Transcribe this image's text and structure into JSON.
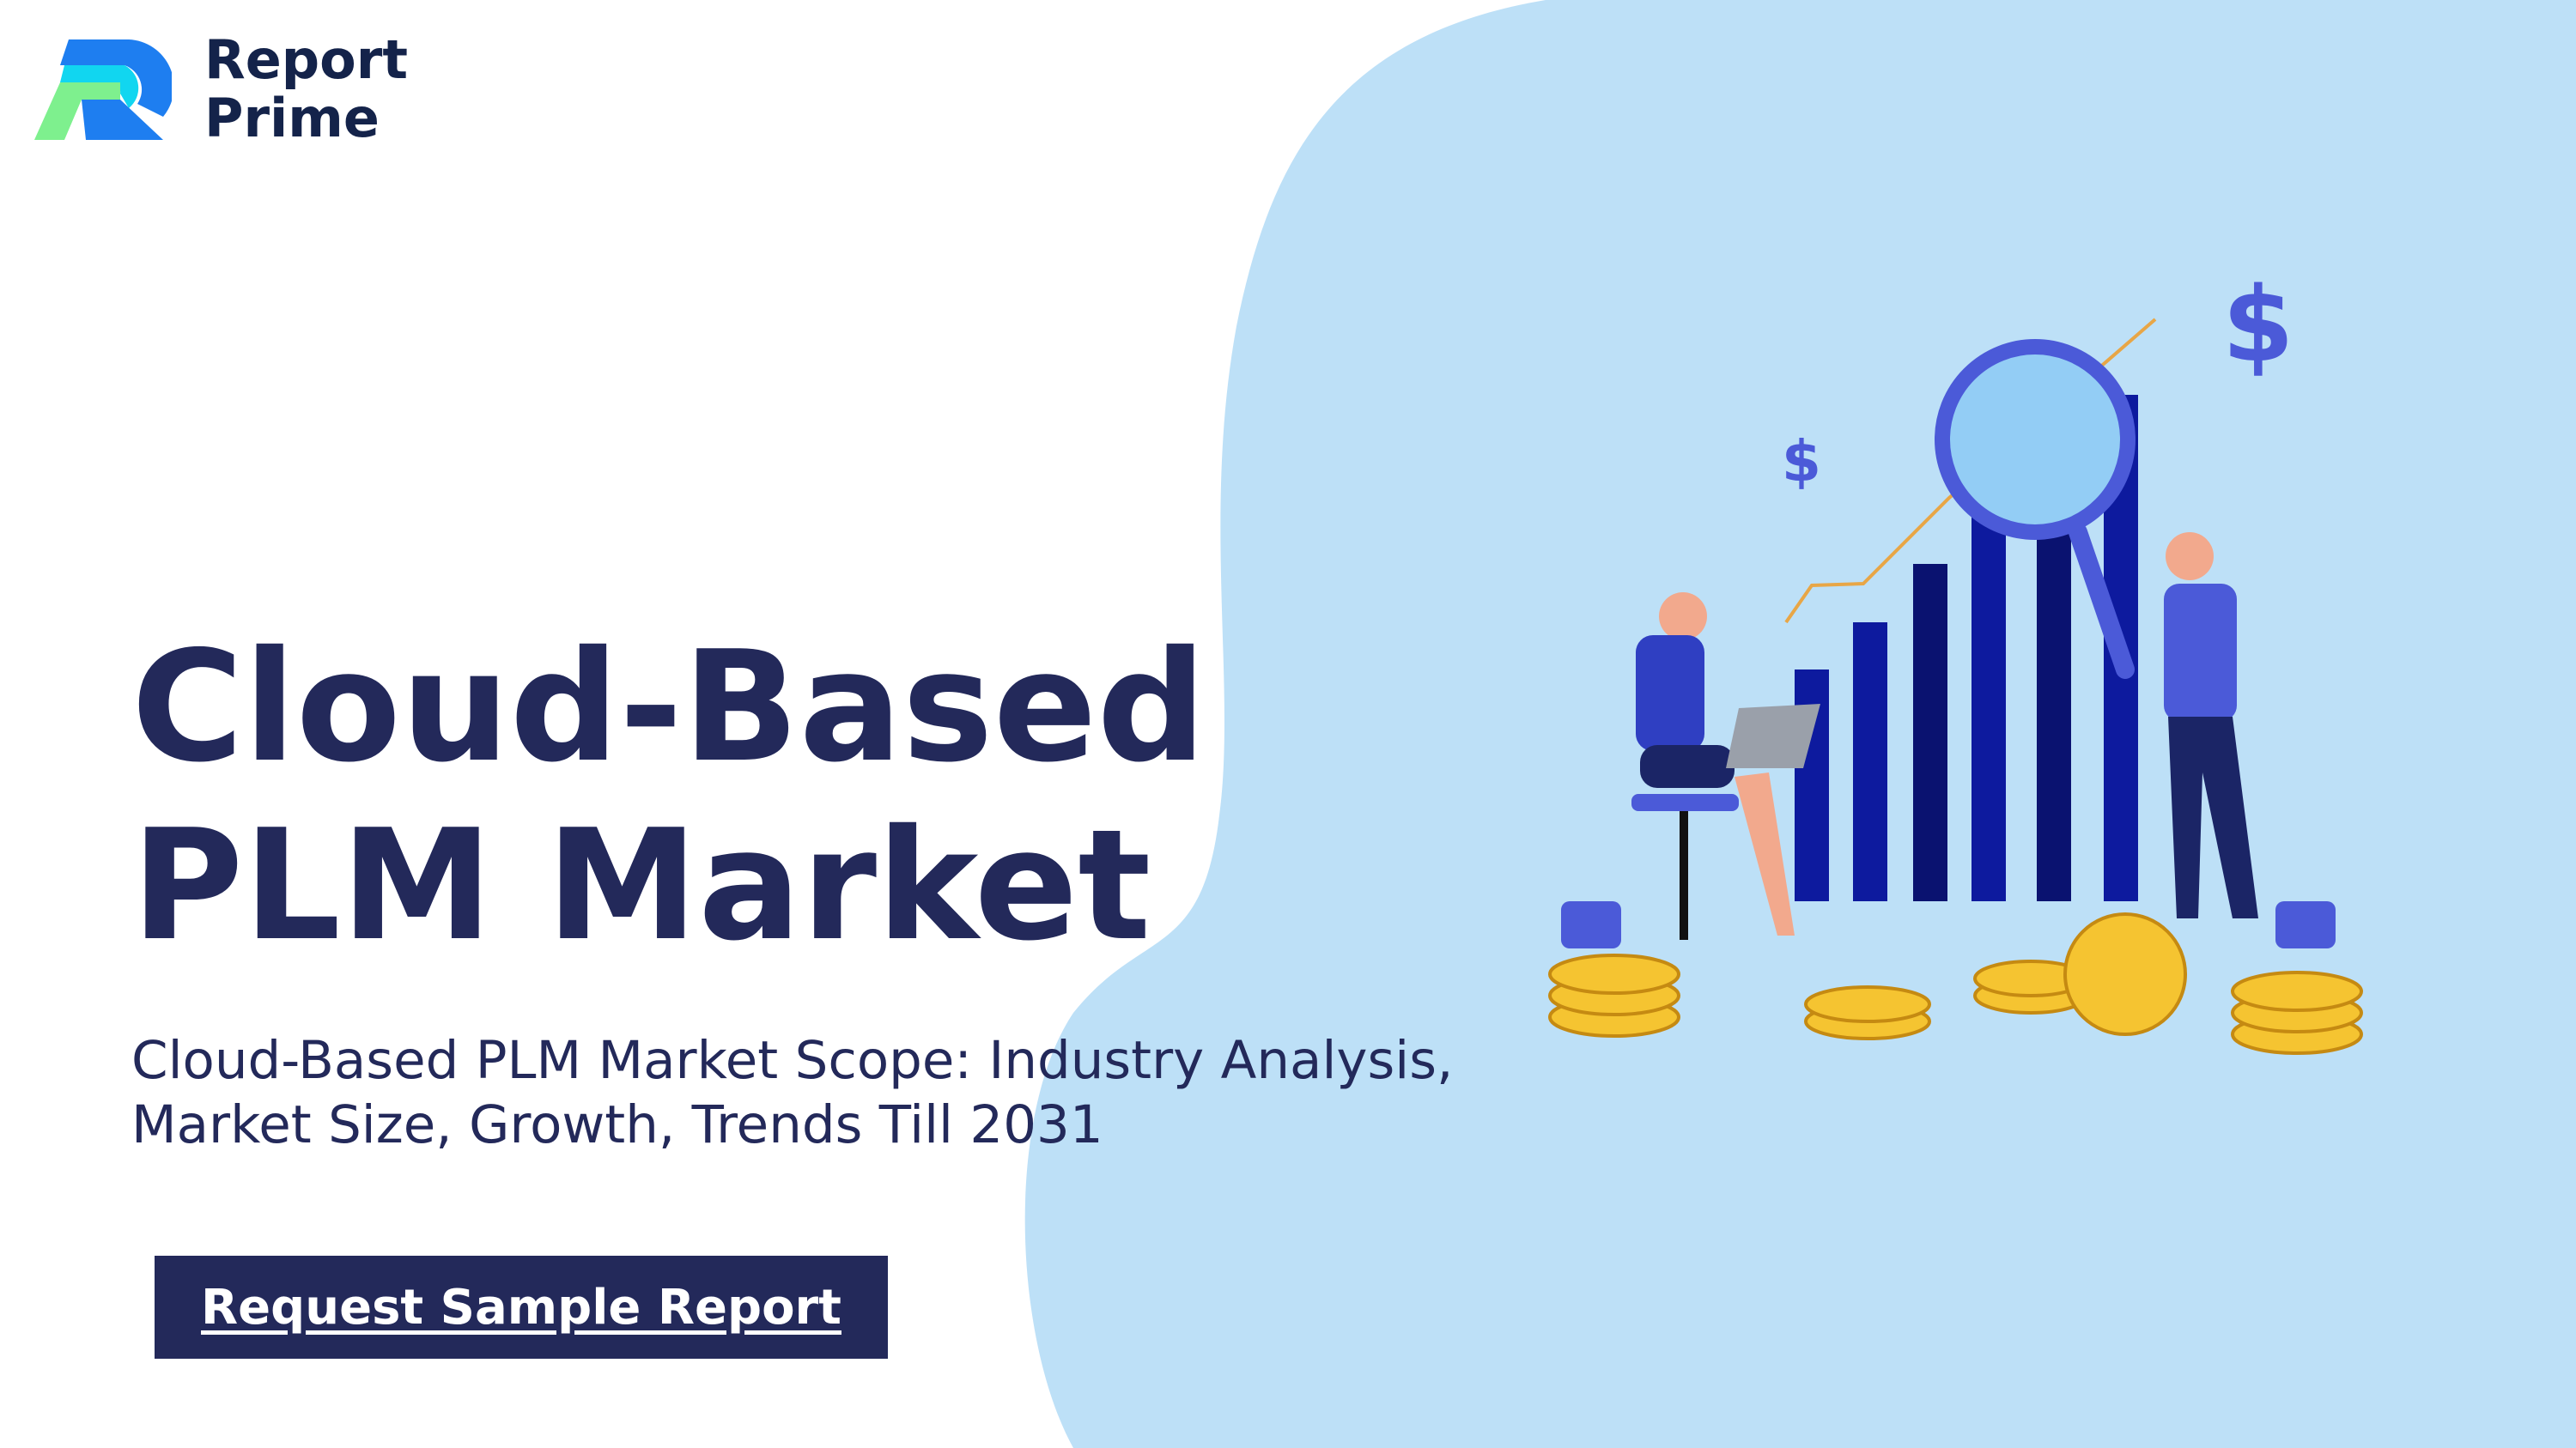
{
  "logo": {
    "line1": "Report",
    "line2": "Prime"
  },
  "hero": {
    "title": "Cloud-Based PLM Market",
    "subtitle": "Cloud-Based PLM Market Scope: Industry Analysis, Market Size, Growth, Trends Till 2031",
    "cta_label": "Request Sample Report"
  },
  "colors": {
    "navy": "#23295a",
    "blob": "#bde0f7",
    "accent": "#0d1a9e"
  },
  "illustration": {
    "symbols": [
      "$",
      "$"
    ]
  }
}
